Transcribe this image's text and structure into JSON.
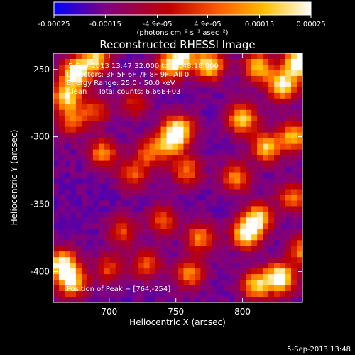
{
  "chart_data": {
    "type": "heatmap",
    "title": "Reconstructed RHESSI Image",
    "xlabel": "Heliocentric X (arcsec)",
    "ylabel": "Heliocentric Y (arcsec)",
    "xlim": [
      658,
      845
    ],
    "ylim": [
      -423,
      -238
    ],
    "xticks": [
      700,
      750,
      800
    ],
    "yticks": [
      -400,
      -350,
      -300,
      -250
    ],
    "colorbar": {
      "range": [
        -0.00025,
        0.00025
      ],
      "tick_labels": [
        "-0.00025",
        "-0.00015",
        "-4.9e-05",
        "4.9e-05",
        "0.00015",
        "0.00025"
      ],
      "unit_label": "(photons cm⁻² s⁻¹ asec⁻²)",
      "palette": [
        "#0000ff",
        "#800080",
        "#c00000",
        "#ff6000",
        "#ffc000",
        "#ffffff"
      ]
    },
    "annotations": [
      "5-Sep-2013 13:47:32.000 to 13:48:18.000",
      "Detectors: 3F 5F 6F 7F 8F 9F, All 0",
      "Energy Range: 25.0 - 50.0 keV",
      "Clean     Total counts: 6.66E+03",
      "Position of Peak = [764,-254]"
    ],
    "peak": [
      764,
      -254
    ],
    "features": [
      {
        "x": 842,
        "y": -245,
        "level": 1.0
      },
      {
        "x": 830,
        "y": -262,
        "level": 0.85
      },
      {
        "x": 812,
        "y": -248,
        "level": 0.7
      },
      {
        "x": 775,
        "y": -247,
        "level": 0.8
      },
      {
        "x": 755,
        "y": -240,
        "level": 0.7
      },
      {
        "x": 745,
        "y": -248,
        "level": 0.6
      },
      {
        "x": 690,
        "y": -242,
        "level": 0.7
      },
      {
        "x": 675,
        "y": -252,
        "level": 0.9
      },
      {
        "x": 668,
        "y": -270,
        "level": 0.75
      },
      {
        "x": 672,
        "y": -288,
        "level": 0.5
      },
      {
        "x": 752,
        "y": -295,
        "level": 0.85
      },
      {
        "x": 745,
        "y": -305,
        "level": 0.6
      },
      {
        "x": 800,
        "y": -287,
        "level": 0.75
      },
      {
        "x": 818,
        "y": -308,
        "level": 0.7
      },
      {
        "x": 838,
        "y": -300,
        "level": 0.65
      },
      {
        "x": 695,
        "y": -312,
        "level": 0.55
      },
      {
        "x": 730,
        "y": -312,
        "level": 0.45
      },
      {
        "x": 758,
        "y": -325,
        "level": 0.5
      },
      {
        "x": 795,
        "y": -330,
        "level": 0.55
      },
      {
        "x": 718,
        "y": -328,
        "level": 0.45
      },
      {
        "x": 838,
        "y": -345,
        "level": 0.5
      },
      {
        "x": 803,
        "y": -372,
        "level": 0.85
      },
      {
        "x": 812,
        "y": -360,
        "level": 0.7
      },
      {
        "x": 768,
        "y": -375,
        "level": 0.55
      },
      {
        "x": 740,
        "y": -362,
        "level": 0.45
      },
      {
        "x": 710,
        "y": -370,
        "level": 0.4
      },
      {
        "x": 665,
        "y": -395,
        "level": 0.9
      },
      {
        "x": 672,
        "y": -408,
        "level": 0.75
      },
      {
        "x": 828,
        "y": -405,
        "level": 0.95
      },
      {
        "x": 810,
        "y": -410,
        "level": 0.7
      },
      {
        "x": 760,
        "y": -402,
        "level": 0.55
      },
      {
        "x": 728,
        "y": -395,
        "level": 0.45
      },
      {
        "x": 700,
        "y": -398,
        "level": 0.4
      },
      {
        "x": 845,
        "y": -385,
        "level": 0.55
      },
      {
        "x": 690,
        "y": -280,
        "level": 0.4
      },
      {
        "x": 720,
        "y": -275,
        "level": 0.35
      }
    ]
  },
  "footer": {
    "timestamp": "5-Sep-2013 13:48"
  }
}
